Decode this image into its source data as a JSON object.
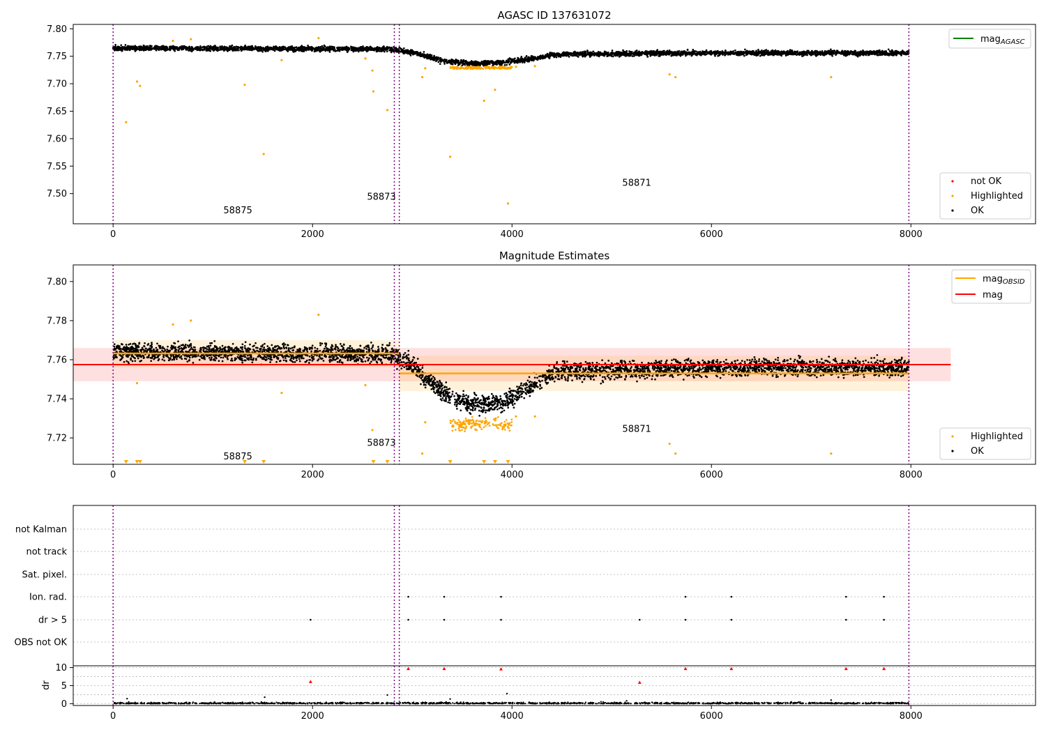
{
  "colors": {
    "ok": "#000000",
    "highlighted": "#ffa500",
    "not_ok": "#ff0000",
    "agasc_line": "#008000",
    "mag_line": "#ff0000",
    "mag_obsid_line": "#ffa500",
    "obsid_divider": "#800080",
    "grid": "#b0b0b0"
  },
  "chart_data": [
    {
      "type": "scatter",
      "title": "AGASC ID 137631072",
      "xlabel": "",
      "ylabel": "",
      "xlim": [
        -400,
        9250
      ],
      "ylim": [
        7.445,
        7.808
      ],
      "x_ticks": [
        0,
        2000,
        4000,
        6000,
        8000
      ],
      "y_ticks": [
        7.5,
        7.55,
        7.6,
        7.65,
        7.7,
        7.75,
        7.8
      ],
      "grid": false,
      "obsid_boundaries": [
        0,
        2820,
        2870,
        7980
      ],
      "obsid_labels": [
        {
          "text": "58875",
          "x": 1400,
          "y": 7.464
        },
        {
          "text": "58873",
          "x": 2840,
          "y": 7.489
        },
        {
          "text": "58871",
          "x": 5400,
          "y": 7.514
        }
      ],
      "series": [
        {
          "name": "OK",
          "kind": "points",
          "color": "#000000",
          "profile": [
            [
              0,
              7.765
            ],
            [
              2800,
              7.763
            ],
            [
              3050,
              7.755
            ],
            [
              3300,
              7.742
            ],
            [
              3600,
              7.737
            ],
            [
              3900,
              7.738
            ],
            [
              4150,
              7.745
            ],
            [
              4500,
              7.754
            ],
            [
              6000,
              7.756
            ],
            [
              8000,
              7.756
            ]
          ],
          "x_range": [
            0,
            7980
          ],
          "n": 4200,
          "spread": 0.0045
        },
        {
          "name": "Highlighted",
          "kind": "points",
          "color": "#ffa500",
          "points": [
            [
              130,
              7.63
            ],
            [
              240,
              7.704
            ],
            [
              270,
              7.696
            ],
            [
              600,
              7.778
            ],
            [
              780,
              7.781
            ],
            [
              1320,
              7.698
            ],
            [
              1510,
              7.572
            ],
            [
              1690,
              7.743
            ],
            [
              2060,
              7.783
            ],
            [
              2530,
              7.746
            ],
            [
              2600,
              7.724
            ],
            [
              2610,
              7.686
            ],
            [
              2750,
              7.652
            ],
            [
              3100,
              7.712
            ],
            [
              3130,
              7.728
            ],
            [
              3380,
              7.567
            ],
            [
              3720,
              7.669
            ],
            [
              3830,
              7.689
            ],
            [
              3960,
              7.482
            ],
            [
              4040,
              7.731
            ],
            [
              4230,
              7.732
            ],
            [
              5580,
              7.717
            ],
            [
              5640,
              7.712
            ],
            [
              7200,
              7.712
            ]
          ],
          "dip_cluster": {
            "x_range": [
              3380,
              4000
            ],
            "y_center": 7.729,
            "n": 160
          }
        },
        {
          "name": "not OK",
          "kind": "points",
          "color": "#ff0000",
          "points": []
        },
        {
          "name": "mag_AGASC",
          "kind": "line",
          "color": "#008000"
        }
      ],
      "legends": [
        {
          "placement": "top-right",
          "entries": [
            {
              "label": "mag",
              "sub": "AGASC",
              "type": "line",
              "color": "#008000"
            }
          ]
        },
        {
          "placement": "bottom-right",
          "entries": [
            {
              "label": "not OK",
              "type": "point",
              "color": "#ff0000"
            },
            {
              "label": "Highlighted",
              "type": "point",
              "color": "#ffa500"
            },
            {
              "label": "OK",
              "type": "point",
              "color": "#000000"
            }
          ]
        }
      ]
    },
    {
      "type": "scatter",
      "title": "Magnitude Estimates",
      "xlabel": "",
      "ylabel": "",
      "xlim": [
        -400,
        9250
      ],
      "ylim": [
        7.7065,
        7.8085
      ],
      "x_ticks": [
        0,
        2000,
        4000,
        6000,
        8000
      ],
      "y_ticks": [
        7.72,
        7.74,
        7.76,
        7.78,
        7.8
      ],
      "grid": false,
      "obsid_boundaries": [
        0,
        2820,
        2870,
        7980
      ],
      "obsid_labels": [
        {
          "text": "58875",
          "x": 1400,
          "y": 7.709
        },
        {
          "text": "58873",
          "x": 2840,
          "y": 7.716
        },
        {
          "text": "58871",
          "x": 5400,
          "y": 7.723
        }
      ],
      "mag": {
        "value": 7.7575,
        "band": [
          7.749,
          7.766
        ],
        "x_range": [
          -400,
          8400
        ]
      },
      "mag_obsid": [
        {
          "x_range": [
            0,
            2870
          ],
          "value": 7.7632,
          "band": [
            7.756,
            7.77
          ]
        },
        {
          "x_range": [
            2870,
            7980
          ],
          "value": 7.753,
          "band": [
            7.744,
            7.762
          ]
        }
      ],
      "series": [
        {
          "name": "OK",
          "kind": "points",
          "color": "#000000",
          "profile": [
            [
              0,
              7.764
            ],
            [
              2800,
              7.763
            ],
            [
              3000,
              7.757
            ],
            [
              3150,
              7.75
            ],
            [
              3350,
              7.742
            ],
            [
              3600,
              7.737
            ],
            [
              3900,
              7.738
            ],
            [
              4150,
              7.745
            ],
            [
              4450,
              7.754
            ],
            [
              6000,
              7.756
            ],
            [
              8000,
              7.756
            ]
          ],
          "x_range": [
            0,
            7980
          ],
          "n": 4200,
          "spread": 0.0045
        },
        {
          "name": "Highlighted",
          "kind": "points",
          "color": "#ffa500",
          "points": [
            [
              240,
              7.748
            ],
            [
              600,
              7.778
            ],
            [
              780,
              7.78
            ],
            [
              1690,
              7.743
            ],
            [
              2060,
              7.783
            ],
            [
              2530,
              7.747
            ],
            [
              2600,
              7.724
            ],
            [
              3100,
              7.712
            ],
            [
              3130,
              7.728
            ],
            [
              4040,
              7.731
            ],
            [
              4230,
              7.731
            ],
            [
              5580,
              7.717
            ],
            [
              5640,
              7.712
            ],
            [
              7200,
              7.712
            ]
          ],
          "dip_cluster": {
            "x_range": [
              3380,
              4000
            ],
            "y_center": 7.729,
            "n": 160
          },
          "clipped_markers_x": [
            130,
            240,
            270,
            1320,
            1510,
            2610,
            2750,
            3380,
            3720,
            3830,
            3960
          ]
        }
      ],
      "legends": [
        {
          "placement": "top-right",
          "entries": [
            {
              "label": "mag",
              "sub": "OBSID",
              "type": "line",
              "color": "#ffa500"
            },
            {
              "label": "mag",
              "sub": "",
              "type": "line",
              "color": "#ff0000"
            }
          ]
        },
        {
          "placement": "bottom-right",
          "entries": [
            {
              "label": "Highlighted",
              "type": "point",
              "color": "#ffa500"
            },
            {
              "label": "OK",
              "type": "point",
              "color": "#000000"
            }
          ]
        }
      ]
    },
    {
      "type": "scatter",
      "title": "",
      "xlabel": "",
      "ylabel": "",
      "xlim": [
        -400,
        9250
      ],
      "x_ticks": [
        0,
        2000,
        4000,
        6000,
        8000
      ],
      "obsid_boundaries": [
        0,
        2820,
        2870,
        7980
      ],
      "flag_rows": [
        "not Kalman",
        "not track",
        "Sat. pixel.",
        "Ion. rad.",
        "dr > 5",
        "OBS not OK"
      ],
      "flag_points": {
        "Ion. rad.": [
          2960,
          3320,
          3890,
          5740,
          6200,
          7350,
          7730
        ],
        "dr > 5": [
          1980,
          2960,
          3320,
          3890,
          5280,
          5740,
          6200,
          7350,
          7730
        ]
      }
    },
    {
      "type": "scatter",
      "title": "",
      "xlabel": "",
      "ylabel": "dr",
      "xlim": [
        -400,
        9250
      ],
      "ylim": [
        -0.5,
        10.5
      ],
      "x_ticks": [
        0,
        2000,
        4000,
        6000,
        8000
      ],
      "y_ticks": [
        0,
        5,
        10
      ],
      "obsid_boundaries": [
        0,
        2820,
        2870,
        7980
      ],
      "outliers_black": [
        [
          140,
          1.4
        ],
        [
          1520,
          1.8
        ],
        [
          2750,
          2.4
        ],
        [
          3380,
          1.3
        ],
        [
          3950,
          2.8
        ],
        [
          5150,
          0.8
        ],
        [
          6800,
          0.5
        ],
        [
          7200,
          1.0
        ]
      ],
      "outliers_red": [
        [
          1980,
          6.1
        ],
        [
          2960,
          9.7
        ],
        [
          3320,
          9.7
        ],
        [
          3890,
          9.6
        ],
        [
          5280,
          5.9
        ],
        [
          5740,
          9.7
        ],
        [
          6200,
          9.7
        ],
        [
          7350,
          9.7
        ],
        [
          7730,
          9.7
        ]
      ]
    }
  ]
}
